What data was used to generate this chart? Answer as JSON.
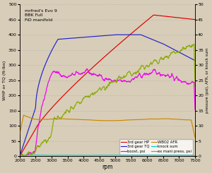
{
  "title_lines": [
    "mrfred's Evo 9",
    "BBK Full",
    "FiD manifold"
  ],
  "xlabel": "rpm",
  "ylabel_left": "WHP or TQ (ft-lbs)",
  "ylabel_right": "pressure (psi), AFR, or knock sum",
  "xlim": [
    2000,
    7500
  ],
  "ylim_left": [
    0,
    500
  ],
  "ylim_right": [
    0,
    50
  ],
  "yticks_left": [
    0,
    50,
    100,
    150,
    200,
    250,
    300,
    350,
    400,
    450,
    500
  ],
  "yticks_right": [
    0,
    5,
    10,
    15,
    20,
    25,
    30,
    35,
    40,
    45,
    50
  ],
  "xticks": [
    2000,
    2500,
    3000,
    3500,
    4000,
    4500,
    5000,
    5500,
    6000,
    6500,
    7000,
    7500
  ],
  "bg_color": "#d8cdb8",
  "plot_bg": "#d8cdb8",
  "grid_color": "#aaaaaa",
  "legend_entries": [
    "3rd gear HP",
    "3rd gear TQ",
    "boost, psi",
    "WBO2 AFR",
    "knock sum",
    "ex mani press, psi"
  ],
  "line_colors": {
    "hp": "#dd0000",
    "tq": "#2222cc",
    "boost": "#ee00ee",
    "afr": "#cc8800",
    "knock": "#00cccc",
    "exmani": "#88aa00"
  }
}
